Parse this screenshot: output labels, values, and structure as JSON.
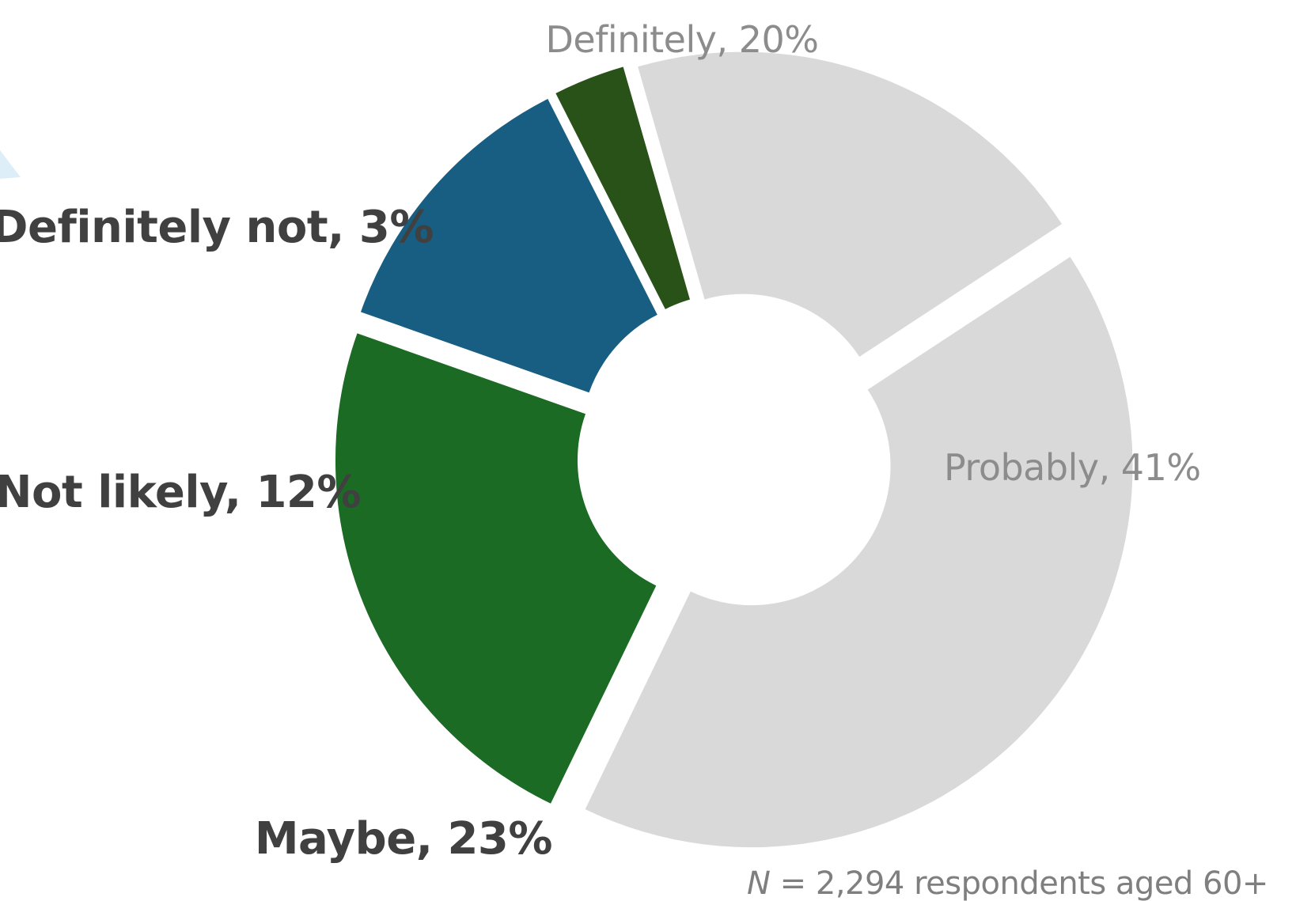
{
  "colors": {
    "definitely": "#d9d9d9",
    "probably": "#d9d9d9",
    "maybe": "#1c6b25",
    "not_likely": "#185e82",
    "definitely_not": "#285218",
    "dark_label": "#404040",
    "light_label": "#8c8c8c",
    "corner_accent": "#deeef8"
  },
  "chart_data": {
    "type": "pie",
    "donut": true,
    "slices": [
      {
        "label": "Definitely",
        "value": 20,
        "text": "Definitely, 20%",
        "color": "#d9d9d9",
        "style": "light"
      },
      {
        "label": "Probably",
        "value": 41,
        "text": "Probably, 41%",
        "color": "#d9d9d9",
        "style": "light"
      },
      {
        "label": "Maybe",
        "value": 23,
        "text": "Maybe, 23%",
        "color": "#1c6b25",
        "style": "bold"
      },
      {
        "label": "Not likely",
        "value": 12,
        "text": "Not likely, 12%",
        "color": "#185e82",
        "style": "bold"
      },
      {
        "label": "Definitely not",
        "value": 3,
        "text": "Definitely not, 3%",
        "color": "#285218",
        "style": "bold"
      }
    ],
    "start_angle_deg": -16,
    "direction": "clockwise"
  },
  "footnote": {
    "n_symbol": "N",
    "text": " = 2,294 respondents aged 60+"
  }
}
